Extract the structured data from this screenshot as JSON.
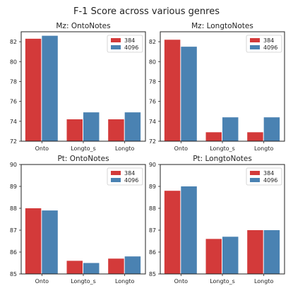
{
  "figure_title": "F-1 Score across various genres",
  "colors": {
    "s384": "#d33a3a",
    "s4096": "#4a82b2"
  },
  "chart_data": [
    {
      "type": "bar",
      "title": "Mz: OntoNotes",
      "categories": [
        "Onto",
        "Longto_s",
        "Longto"
      ],
      "series": [
        {
          "name": "384",
          "values": [
            82.3,
            74.2,
            74.2
          ]
        },
        {
          "name": "4096",
          "values": [
            82.6,
            74.9,
            74.9
          ]
        }
      ],
      "ylim": [
        72,
        83
      ],
      "yticks": [
        72,
        74,
        76,
        78,
        80,
        82
      ],
      "legend": "top-right"
    },
    {
      "type": "bar",
      "title": "Mz: LongtoNotes",
      "categories": [
        "Onto",
        "Longto_s",
        "Longto"
      ],
      "series": [
        {
          "name": "384",
          "values": [
            82.2,
            72.9,
            72.9
          ]
        },
        {
          "name": "4096",
          "values": [
            81.5,
            74.4,
            74.4
          ]
        }
      ],
      "ylim": [
        72,
        83
      ],
      "yticks": [
        72,
        74,
        76,
        78,
        80,
        82
      ],
      "legend": "top-right"
    },
    {
      "type": "bar",
      "title": "Pt: OntoNotes",
      "categories": [
        "Onto",
        "Longto_s",
        "Longto"
      ],
      "series": [
        {
          "name": "384",
          "values": [
            88.0,
            85.6,
            85.7
          ]
        },
        {
          "name": "4096",
          "values": [
            87.9,
            85.5,
            85.8
          ]
        }
      ],
      "ylim": [
        85,
        90
      ],
      "yticks": [
        85,
        86,
        87,
        88,
        89,
        90
      ],
      "legend": "top-right"
    },
    {
      "type": "bar",
      "title": "Pt: LongtoNotes",
      "categories": [
        "Onto",
        "Longto_s",
        "Longto"
      ],
      "series": [
        {
          "name": "384",
          "values": [
            88.8,
            86.6,
            87.0
          ]
        },
        {
          "name": "4096",
          "values": [
            89.0,
            86.7,
            87.0
          ]
        }
      ],
      "ylim": [
        85,
        90
      ],
      "yticks": [
        85,
        86,
        87,
        88,
        89,
        90
      ],
      "legend": "top-right"
    }
  ]
}
